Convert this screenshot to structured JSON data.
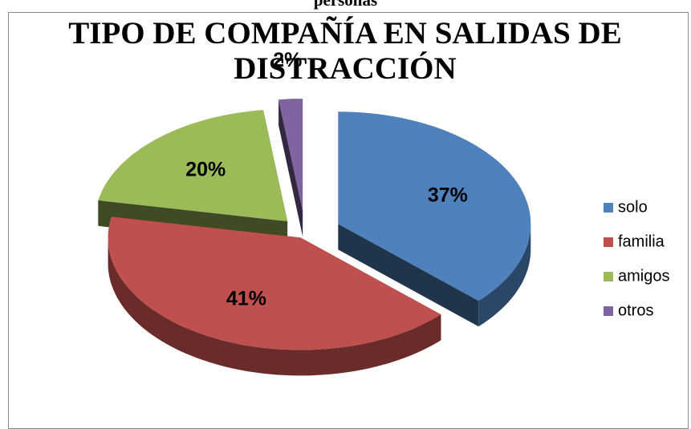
{
  "header": "personas",
  "chart_data": {
    "type": "pie",
    "title": "TIPO DE COMPAÑÍA EN SALIDAS DE DISTRACCIÓN",
    "categories": [
      "solo",
      "familia",
      "amigos",
      "otros"
    ],
    "values": [
      37,
      41,
      20,
      2
    ],
    "value_labels": [
      "37%",
      "41%",
      "20%",
      "2%"
    ],
    "colors": [
      "#4f81bd",
      "#c0504d",
      "#9bbb59",
      "#8064a2"
    ],
    "legend": "right"
  }
}
